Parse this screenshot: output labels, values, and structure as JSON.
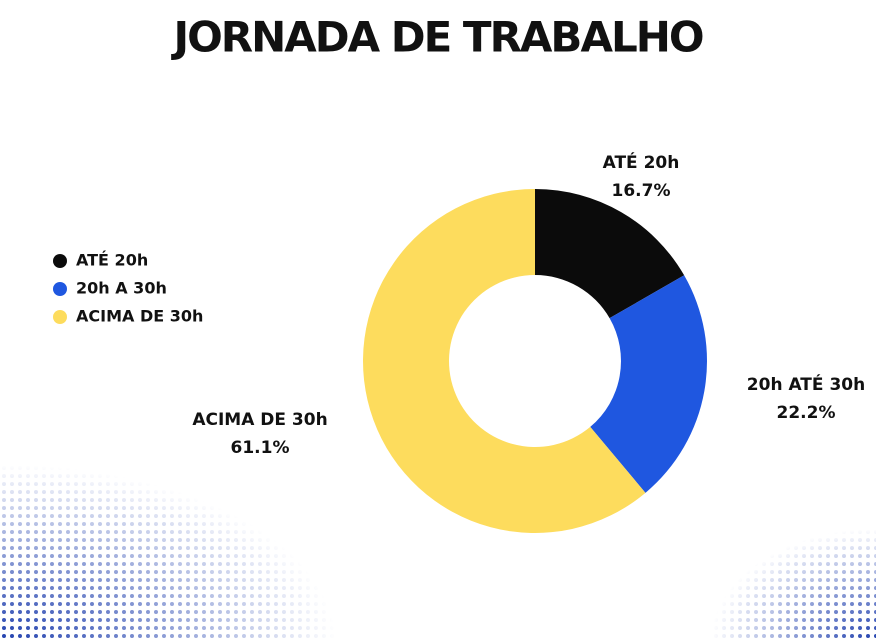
{
  "chart_data": {
    "type": "donut",
    "title": "JORNADA DE TRABALHO",
    "categories": [
      "ATÉ 20h",
      "20h A 30h",
      "ACIMA DE 30h"
    ],
    "labels": [
      "ATÉ 20h",
      "20h ATÉ 30h",
      "ACIMA DE 30h"
    ],
    "values": [
      16.7,
      22.2,
      61.1
    ],
    "value_labels": [
      "16.7%",
      "22.2%",
      "61.1%"
    ],
    "colors": [
      "#0b0b0b",
      "#1f57e0",
      "#fddc5d"
    ],
    "legend": "left"
  }
}
